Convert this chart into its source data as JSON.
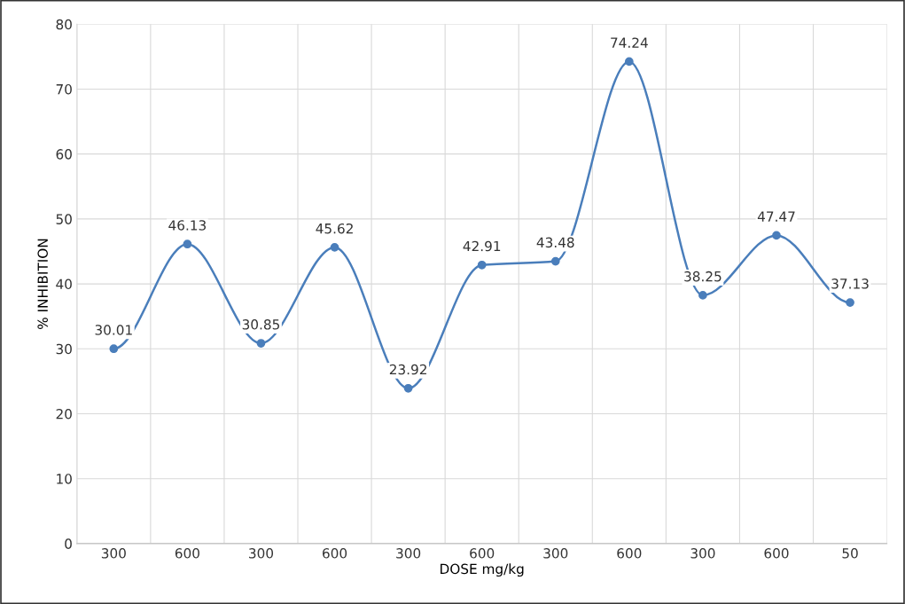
{
  "chart_data": {
    "type": "line",
    "xlabel": "DOSE mg/kg",
    "ylabel": "% INHIBITION",
    "categories": [
      "300",
      "600",
      "300",
      "600",
      "300",
      "600",
      "300",
      "600",
      "300",
      "600",
      "50"
    ],
    "series": [
      {
        "color": "#4a7ebb",
        "values": [
          30.01,
          46.13,
          30.85,
          45.62,
          23.92,
          42.91,
          43.48,
          74.24,
          38.25,
          47.47,
          37.13
        ]
      }
    ],
    "ylim": [
      0,
      80
    ],
    "yticks": [
      0,
      10,
      20,
      30,
      40,
      50,
      60,
      70,
      80
    ],
    "grid": true,
    "marker": "circle",
    "data_labels": true,
    "legend": false
  }
}
